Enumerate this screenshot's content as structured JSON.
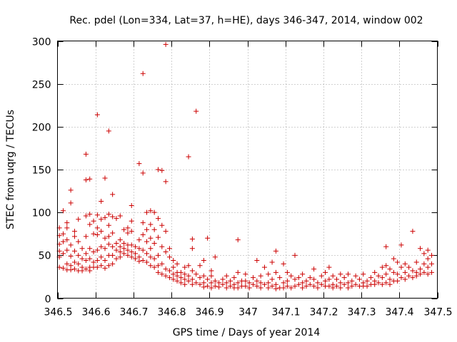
{
  "chart_data": {
    "type": "scatter",
    "title": "Rec. pdel (Lon=334, Lat=37, h=HE), days 346-347, 2014, window 002",
    "xlabel": "GPS time / Days of year 2014",
    "ylabel": "STEC from uqrg / TECUs",
    "xlim": [
      346.5,
      347.5
    ],
    "ylim": [
      0,
      300
    ],
    "xticks": [
      346.5,
      346.6,
      346.7,
      346.8,
      346.9,
      347.0,
      347.1,
      347.2,
      347.3,
      347.4,
      347.5
    ],
    "xtick_labels": [
      "346.5",
      "346.6",
      "346.7",
      "346.8",
      "346.9",
      "347",
      "347.1",
      "347.2",
      "347.3",
      "347.4",
      "347.5"
    ],
    "yticks": [
      0,
      50,
      100,
      150,
      200,
      250,
      300
    ],
    "ytick_labels": [
      "0",
      "50",
      "100",
      "150",
      "200",
      "250",
      "300"
    ],
    "grid": true,
    "marker": "+",
    "color": "#cc0000",
    "points": [
      [
        346.505,
        82
      ],
      [
        346.505,
        73
      ],
      [
        346.505,
        63
      ],
      [
        346.505,
        55
      ],
      [
        346.505,
        48
      ],
      [
        346.505,
        36
      ],
      [
        346.515,
        102
      ],
      [
        346.515,
        75
      ],
      [
        346.515,
        66
      ],
      [
        346.515,
        52
      ],
      [
        346.515,
        35
      ],
      [
        346.525,
        88
      ],
      [
        346.525,
        82
      ],
      [
        346.525,
        68
      ],
      [
        346.525,
        56
      ],
      [
        346.525,
        40
      ],
      [
        346.525,
        33
      ],
      [
        346.535,
        126
      ],
      [
        346.535,
        111
      ],
      [
        346.535,
        62
      ],
      [
        346.535,
        49
      ],
      [
        346.535,
        38
      ],
      [
        346.535,
        33
      ],
      [
        346.545,
        78
      ],
      [
        346.545,
        72
      ],
      [
        346.545,
        55
      ],
      [
        346.545,
        42
      ],
      [
        346.545,
        34
      ],
      [
        346.555,
        92
      ],
      [
        346.555,
        66
      ],
      [
        346.555,
        50
      ],
      [
        346.555,
        40
      ],
      [
        346.555,
        32
      ],
      [
        346.565,
        58
      ],
      [
        346.565,
        46
      ],
      [
        346.565,
        36
      ],
      [
        346.565,
        32
      ],
      [
        346.575,
        168
      ],
      [
        346.575,
        138
      ],
      [
        346.575,
        96
      ],
      [
        346.575,
        72
      ],
      [
        346.575,
        52
      ],
      [
        346.575,
        44
      ],
      [
        346.575,
        34
      ],
      [
        346.585,
        139
      ],
      [
        346.585,
        98
      ],
      [
        346.585,
        86
      ],
      [
        346.585,
        58
      ],
      [
        346.585,
        46
      ],
      [
        346.585,
        36
      ],
      [
        346.585,
        32
      ],
      [
        346.595,
        90
      ],
      [
        346.595,
        75
      ],
      [
        346.595,
        54
      ],
      [
        346.595,
        42
      ],
      [
        346.595,
        36
      ],
      [
        346.605,
        214
      ],
      [
        346.605,
        97
      ],
      [
        346.605,
        82
      ],
      [
        346.605,
        74
      ],
      [
        346.605,
        56
      ],
      [
        346.605,
        44
      ],
      [
        346.605,
        36
      ],
      [
        346.615,
        113
      ],
      [
        346.615,
        92
      ],
      [
        346.615,
        78
      ],
      [
        346.615,
        60
      ],
      [
        346.615,
        48
      ],
      [
        346.615,
        38
      ],
      [
        346.625,
        140
      ],
      [
        346.625,
        94
      ],
      [
        346.625,
        70
      ],
      [
        346.625,
        58
      ],
      [
        346.625,
        44
      ],
      [
        346.625,
        35
      ],
      [
        346.635,
        195
      ],
      [
        346.635,
        98
      ],
      [
        346.635,
        85
      ],
      [
        346.635,
        72
      ],
      [
        346.635,
        63
      ],
      [
        346.635,
        50
      ],
      [
        346.635,
        38
      ],
      [
        346.645,
        121
      ],
      [
        346.645,
        95
      ],
      [
        346.645,
        76
      ],
      [
        346.645,
        60
      ],
      [
        346.645,
        50
      ],
      [
        346.645,
        40
      ],
      [
        346.655,
        93
      ],
      [
        346.655,
        64
      ],
      [
        346.655,
        56
      ],
      [
        346.655,
        46
      ],
      [
        346.665,
        96
      ],
      [
        346.665,
        68
      ],
      [
        346.665,
        60
      ],
      [
        346.665,
        54
      ],
      [
        346.665,
        48
      ],
      [
        346.675,
        80
      ],
      [
        346.675,
        64
      ],
      [
        346.675,
        58
      ],
      [
        346.675,
        52
      ],
      [
        346.685,
        82
      ],
      [
        346.685,
        76
      ],
      [
        346.685,
        62
      ],
      [
        346.685,
        56
      ],
      [
        346.685,
        50
      ],
      [
        346.695,
        108
      ],
      [
        346.695,
        90
      ],
      [
        346.695,
        78
      ],
      [
        346.695,
        62
      ],
      [
        346.695,
        54
      ],
      [
        346.695,
        48
      ],
      [
        346.705,
        60
      ],
      [
        346.705,
        52
      ],
      [
        346.705,
        46
      ],
      [
        346.715,
        157
      ],
      [
        346.715,
        68
      ],
      [
        346.715,
        58
      ],
      [
        346.715,
        48
      ],
      [
        346.715,
        43
      ],
      [
        346.725,
        146
      ],
      [
        346.725,
        262
      ],
      [
        346.725,
        88
      ],
      [
        346.725,
        74
      ],
      [
        346.725,
        56
      ],
      [
        346.725,
        44
      ],
      [
        346.735,
        100
      ],
      [
        346.735,
        80
      ],
      [
        346.735,
        66
      ],
      [
        346.735,
        52
      ],
      [
        346.735,
        42
      ],
      [
        346.745,
        102
      ],
      [
        346.745,
        86
      ],
      [
        346.745,
        70
      ],
      [
        346.745,
        58
      ],
      [
        346.745,
        48
      ],
      [
        346.745,
        38
      ],
      [
        346.755,
        100
      ],
      [
        346.755,
        80
      ],
      [
        346.755,
        64
      ],
      [
        346.755,
        46
      ],
      [
        346.755,
        36
      ],
      [
        346.765,
        150
      ],
      [
        346.765,
        93
      ],
      [
        346.765,
        71
      ],
      [
        346.765,
        50
      ],
      [
        346.765,
        38
      ],
      [
        346.765,
        30
      ],
      [
        346.775,
        149
      ],
      [
        346.775,
        85
      ],
      [
        346.775,
        60
      ],
      [
        346.775,
        40
      ],
      [
        346.775,
        28
      ],
      [
        346.785,
        136
      ],
      [
        346.785,
        296
      ],
      [
        346.785,
        78
      ],
      [
        346.785,
        54
      ],
      [
        346.785,
        34
      ],
      [
        346.785,
        26
      ],
      [
        346.795,
        58
      ],
      [
        346.795,
        48
      ],
      [
        346.795,
        32
      ],
      [
        346.795,
        24
      ],
      [
        346.805,
        44
      ],
      [
        346.805,
        36
      ],
      [
        346.805,
        28
      ],
      [
        346.805,
        22
      ],
      [
        346.815,
        40
      ],
      [
        346.815,
        30
      ],
      [
        346.815,
        26
      ],
      [
        346.815,
        20
      ],
      [
        346.825,
        30
      ],
      [
        346.825,
        24
      ],
      [
        346.825,
        18
      ],
      [
        346.835,
        36
      ],
      [
        346.835,
        28
      ],
      [
        346.835,
        22
      ],
      [
        346.835,
        16
      ],
      [
        346.845,
        165
      ],
      [
        346.845,
        38
      ],
      [
        346.845,
        26
      ],
      [
        346.845,
        20
      ],
      [
        346.855,
        69
      ],
      [
        346.855,
        58
      ],
      [
        346.855,
        32
      ],
      [
        346.855,
        22
      ],
      [
        346.855,
        16
      ],
      [
        346.865,
        218
      ],
      [
        346.865,
        28
      ],
      [
        346.865,
        18
      ],
      [
        346.875,
        38
      ],
      [
        346.875,
        24
      ],
      [
        346.875,
        16
      ],
      [
        346.885,
        44
      ],
      [
        346.885,
        26
      ],
      [
        346.885,
        18
      ],
      [
        346.885,
        13
      ],
      [
        346.895,
        70
      ],
      [
        346.895,
        22
      ],
      [
        346.895,
        14
      ],
      [
        346.905,
        32
      ],
      [
        346.905,
        26
      ],
      [
        346.905,
        18
      ],
      [
        346.905,
        12
      ],
      [
        346.915,
        48
      ],
      [
        346.915,
        20
      ],
      [
        346.915,
        14
      ],
      [
        346.925,
        18
      ],
      [
        346.925,
        13
      ],
      [
        346.935,
        22
      ],
      [
        346.935,
        16
      ],
      [
        346.945,
        26
      ],
      [
        346.945,
        18
      ],
      [
        346.945,
        12
      ],
      [
        346.955,
        20
      ],
      [
        346.955,
        14
      ],
      [
        346.965,
        24
      ],
      [
        346.965,
        16
      ],
      [
        346.965,
        12
      ],
      [
        346.975,
        68
      ],
      [
        346.975,
        30
      ],
      [
        346.975,
        18
      ],
      [
        346.975,
        12
      ],
      [
        346.985,
        20
      ],
      [
        346.985,
        14
      ],
      [
        346.995,
        28
      ],
      [
        346.995,
        20
      ],
      [
        346.995,
        14
      ],
      [
        347.005,
        18
      ],
      [
        347.005,
        12
      ],
      [
        347.015,
        24
      ],
      [
        347.015,
        16
      ],
      [
        347.025,
        44
      ],
      [
        347.025,
        20
      ],
      [
        347.025,
        14
      ],
      [
        347.035,
        26
      ],
      [
        347.035,
        18
      ],
      [
        347.035,
        12
      ],
      [
        347.045,
        36
      ],
      [
        347.045,
        16
      ],
      [
        347.055,
        28
      ],
      [
        347.055,
        18
      ],
      [
        347.055,
        12
      ],
      [
        347.065,
        42
      ],
      [
        347.065,
        22
      ],
      [
        347.065,
        14
      ],
      [
        347.075,
        55
      ],
      [
        347.075,
        30
      ],
      [
        347.075,
        16
      ],
      [
        347.075,
        11
      ],
      [
        347.085,
        24
      ],
      [
        347.085,
        12
      ],
      [
        347.095,
        40
      ],
      [
        347.095,
        18
      ],
      [
        347.095,
        12
      ],
      [
        347.105,
        30
      ],
      [
        347.105,
        20
      ],
      [
        347.105,
        14
      ],
      [
        347.115,
        26
      ],
      [
        347.115,
        12
      ],
      [
        347.125,
        50
      ],
      [
        347.125,
        22
      ],
      [
        347.125,
        14
      ],
      [
        347.135,
        24
      ],
      [
        347.135,
        16
      ],
      [
        347.145,
        28
      ],
      [
        347.145,
        18
      ],
      [
        347.145,
        12
      ],
      [
        347.155,
        20
      ],
      [
        347.155,
        14
      ],
      [
        347.165,
        24
      ],
      [
        347.165,
        16
      ],
      [
        347.175,
        34
      ],
      [
        347.175,
        22
      ],
      [
        347.175,
        14
      ],
      [
        347.185,
        18
      ],
      [
        347.185,
        12
      ],
      [
        347.195,
        26
      ],
      [
        347.195,
        16
      ],
      [
        347.205,
        30
      ],
      [
        347.205,
        20
      ],
      [
        347.205,
        14
      ],
      [
        347.215,
        36
      ],
      [
        347.215,
        22
      ],
      [
        347.215,
        14
      ],
      [
        347.225,
        26
      ],
      [
        347.225,
        16
      ],
      [
        347.225,
        12
      ],
      [
        347.235,
        22
      ],
      [
        347.235,
        14
      ],
      [
        347.245,
        28
      ],
      [
        347.245,
        18
      ],
      [
        347.245,
        12
      ],
      [
        347.255,
        24
      ],
      [
        347.255,
        16
      ],
      [
        347.265,
        28
      ],
      [
        347.265,
        18
      ],
      [
        347.265,
        12
      ],
      [
        347.275,
        20
      ],
      [
        347.275,
        14
      ],
      [
        347.285,
        26
      ],
      [
        347.285,
        16
      ],
      [
        347.295,
        22
      ],
      [
        347.295,
        14
      ],
      [
        347.305,
        28
      ],
      [
        347.305,
        18
      ],
      [
        347.305,
        14
      ],
      [
        347.315,
        20
      ],
      [
        347.315,
        14
      ],
      [
        347.325,
        24
      ],
      [
        347.325,
        16
      ],
      [
        347.335,
        30
      ],
      [
        347.335,
        20
      ],
      [
        347.335,
        16
      ],
      [
        347.345,
        26
      ],
      [
        347.345,
        18
      ],
      [
        347.355,
        36
      ],
      [
        347.355,
        24
      ],
      [
        347.355,
        16
      ],
      [
        347.365,
        60
      ],
      [
        347.365,
        38
      ],
      [
        347.365,
        28
      ],
      [
        347.365,
        18
      ],
      [
        347.375,
        34
      ],
      [
        347.375,
        22
      ],
      [
        347.375,
        16
      ],
      [
        347.385,
        46
      ],
      [
        347.385,
        30
      ],
      [
        347.385,
        20
      ],
      [
        347.395,
        42
      ],
      [
        347.395,
        28
      ],
      [
        347.395,
        20
      ],
      [
        347.405,
        62
      ],
      [
        347.405,
        36
      ],
      [
        347.405,
        24
      ],
      [
        347.415,
        40
      ],
      [
        347.415,
        30
      ],
      [
        347.415,
        22
      ],
      [
        347.425,
        36
      ],
      [
        347.425,
        26
      ],
      [
        347.435,
        78
      ],
      [
        347.435,
        32
      ],
      [
        347.435,
        24
      ],
      [
        347.445,
        42
      ],
      [
        347.445,
        30
      ],
      [
        347.445,
        26
      ],
      [
        347.455,
        58
      ],
      [
        347.455,
        34
      ],
      [
        347.455,
        28
      ],
      [
        347.465,
        52
      ],
      [
        347.465,
        40
      ],
      [
        347.465,
        30
      ],
      [
        347.475,
        56
      ],
      [
        347.475,
        46
      ],
      [
        347.475,
        36
      ],
      [
        347.475,
        28
      ],
      [
        347.485,
        50
      ],
      [
        347.485,
        40
      ],
      [
        347.485,
        30
      ]
    ]
  }
}
